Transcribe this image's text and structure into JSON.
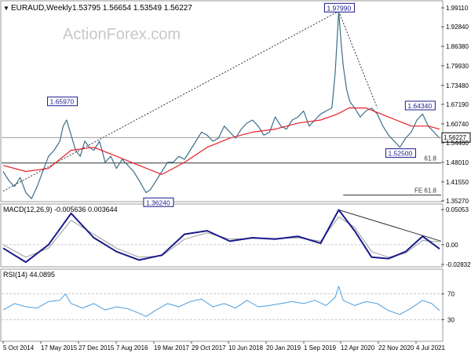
{
  "header": {
    "symbol_line": "EURAUD,Weekly",
    "ohlc_line": "1.53795 1.56654 1.53549 1.56227"
  },
  "watermark": "ActionForex.com",
  "colors": {
    "price": "#3a6f8a",
    "ma": "#e8202a",
    "macd": "#1a1a8c",
    "signal": "#9a9a9a",
    "rsi": "#4a9fe0",
    "label_border": "#1a1a8c",
    "fib": "#333333",
    "current_box": "#000000"
  },
  "chart_data": [
    {
      "type": "line",
      "name": "price",
      "x_tick_labels": [
        "5 Oct 2014",
        "17 May 2015",
        "27 Dec 2015",
        "7 Aug 2016",
        "19 Mar 2017",
        "29 Oct 2017",
        "10 Jun 2018",
        "20 Jan 2019",
        "1 Sep 2019",
        "12 Apr 2020",
        "22 Nov 2020",
        "4 Jul 2021"
      ],
      "y_tick_labels": [
        "1.99110",
        "1.92840",
        "1.86380",
        "1.79930",
        "1.73480",
        "1.67190",
        "1.60740",
        "1.54460",
        "1.48010",
        "1.41550",
        "1.35270"
      ],
      "ylim": [
        1.3527,
        1.9911
      ],
      "current_value": 1.56227,
      "current_label": "1.56227",
      "price_series": [
        [
          0,
          1.45
        ],
        [
          5,
          1.42
        ],
        [
          10,
          1.4
        ],
        [
          15,
          1.43
        ],
        [
          20,
          1.38
        ],
        [
          25,
          1.36
        ],
        [
          30,
          1.4
        ],
        [
          35,
          1.45
        ],
        [
          40,
          1.5
        ],
        [
          45,
          1.52
        ],
        [
          50,
          1.55
        ],
        [
          53,
          1.6
        ],
        [
          56,
          1.62
        ],
        [
          60,
          1.57
        ],
        [
          64,
          1.52
        ],
        [
          68,
          1.5
        ],
        [
          72,
          1.55
        ],
        [
          76,
          1.53
        ],
        [
          80,
          1.52
        ],
        [
          85,
          1.55
        ],
        [
          90,
          1.48
        ],
        [
          95,
          1.5
        ],
        [
          100,
          1.46
        ],
        [
          105,
          1.49
        ],
        [
          110,
          1.47
        ],
        [
          115,
          1.45
        ],
        [
          120,
          1.42
        ],
        [
          126,
          1.38
        ],
        [
          130,
          1.39
        ],
        [
          135,
          1.42
        ],
        [
          140,
          1.45
        ],
        [
          145,
          1.48
        ],
        [
          150,
          1.48
        ],
        [
          155,
          1.5
        ],
        [
          160,
          1.49
        ],
        [
          165,
          1.52
        ],
        [
          170,
          1.55
        ],
        [
          175,
          1.58
        ],
        [
          180,
          1.57
        ],
        [
          185,
          1.55
        ],
        [
          190,
          1.56
        ],
        [
          195,
          1.6
        ],
        [
          200,
          1.58
        ],
        [
          205,
          1.56
        ],
        [
          210,
          1.59
        ],
        [
          215,
          1.61
        ],
        [
          220,
          1.62
        ],
        [
          225,
          1.6
        ],
        [
          230,
          1.57
        ],
        [
          235,
          1.58
        ],
        [
          240,
          1.63
        ],
        [
          245,
          1.6
        ],
        [
          250,
          1.59
        ],
        [
          255,
          1.62
        ],
        [
          260,
          1.63
        ],
        [
          265,
          1.65
        ],
        [
          270,
          1.6
        ],
        [
          275,
          1.62
        ],
        [
          280,
          1.64
        ],
        [
          285,
          1.65
        ],
        [
          290,
          1.66
        ],
        [
          293,
          1.78
        ],
        [
          296,
          1.98
        ],
        [
          298,
          1.88
        ],
        [
          300,
          1.8
        ],
        [
          303,
          1.72
        ],
        [
          306,
          1.68
        ],
        [
          310,
          1.66
        ],
        [
          315,
          1.63
        ],
        [
          320,
          1.65
        ],
        [
          325,
          1.66
        ],
        [
          330,
          1.64
        ],
        [
          335,
          1.6
        ],
        [
          340,
          1.57
        ],
        [
          345,
          1.55
        ],
        [
          350,
          1.53
        ],
        [
          355,
          1.56
        ],
        [
          360,
          1.58
        ],
        [
          365,
          1.62
        ],
        [
          370,
          1.64
        ],
        [
          375,
          1.6
        ],
        [
          380,
          1.58
        ],
        [
          385,
          1.56
        ]
      ],
      "ma_series": [
        [
          0,
          1.47
        ],
        [
          20,
          1.45
        ],
        [
          40,
          1.46
        ],
        [
          60,
          1.52
        ],
        [
          80,
          1.53
        ],
        [
          100,
          1.5
        ],
        [
          120,
          1.47
        ],
        [
          140,
          1.44
        ],
        [
          160,
          1.48
        ],
        [
          180,
          1.53
        ],
        [
          200,
          1.56
        ],
        [
          220,
          1.58
        ],
        [
          240,
          1.59
        ],
        [
          260,
          1.61
        ],
        [
          280,
          1.62
        ],
        [
          295,
          1.64
        ],
        [
          305,
          1.66
        ],
        [
          320,
          1.66
        ],
        [
          340,
          1.63
        ],
        [
          360,
          1.6
        ],
        [
          375,
          1.6
        ],
        [
          385,
          1.59
        ]
      ],
      "annotations": [
        {
          "label": "1.97990",
          "value": 1.9799,
          "bar": 296
        },
        {
          "label": "1.65970",
          "value": 1.6597,
          "bar": 53
        },
        {
          "label": "1.64340",
          "value": 1.6434,
          "bar": 370
        },
        {
          "label": "1.52500",
          "value": 1.525,
          "bar": 350
        },
        {
          "label": "1.36240",
          "value": 1.3624,
          "bar": 126
        }
      ],
      "fib_levels": [
        {
          "label": "61.8",
          "value": 1.478
        },
        {
          "label": "FE 61.8",
          "value": 1.372
        }
      ]
    },
    {
      "type": "line",
      "name": "MACD",
      "title": "MACD(12,26,9) -0.005636 0.003644",
      "y_tick_labels": [
        "0.05053",
        "0.00",
        "-0.028323"
      ],
      "ylim": [
        -0.028323,
        0.05053
      ],
      "macd_series": [
        [
          0,
          -0.005
        ],
        [
          20,
          -0.025
        ],
        [
          40,
          0.0
        ],
        [
          60,
          0.045
        ],
        [
          80,
          0.01
        ],
        [
          100,
          -0.01
        ],
        [
          120,
          -0.022
        ],
        [
          140,
          -0.015
        ],
        [
          160,
          0.015
        ],
        [
          180,
          0.02
        ],
        [
          200,
          0.005
        ],
        [
          220,
          0.01
        ],
        [
          240,
          0.008
        ],
        [
          260,
          0.012
        ],
        [
          280,
          0.002
        ],
        [
          296,
          0.05
        ],
        [
          310,
          0.02
        ],
        [
          325,
          -0.018
        ],
        [
          340,
          -0.02
        ],
        [
          355,
          -0.01
        ],
        [
          370,
          0.012
        ],
        [
          385,
          -0.006
        ]
      ],
      "signal_series": [
        [
          0,
          0.0
        ],
        [
          20,
          -0.018
        ],
        [
          40,
          -0.005
        ],
        [
          60,
          0.035
        ],
        [
          80,
          0.015
        ],
        [
          100,
          -0.005
        ],
        [
          120,
          -0.018
        ],
        [
          140,
          -0.016
        ],
        [
          160,
          0.008
        ],
        [
          180,
          0.017
        ],
        [
          200,
          0.008
        ],
        [
          220,
          0.009
        ],
        [
          240,
          0.009
        ],
        [
          260,
          0.01
        ],
        [
          280,
          0.005
        ],
        [
          296,
          0.04
        ],
        [
          310,
          0.025
        ],
        [
          325,
          -0.01
        ],
        [
          340,
          -0.018
        ],
        [
          355,
          -0.012
        ],
        [
          370,
          0.006
        ],
        [
          385,
          0.004
        ]
      ]
    },
    {
      "type": "line",
      "name": "RSI",
      "title": "RSI(14) 44.0895",
      "y_tick_labels": [
        "70",
        "30"
      ],
      "ylim": [
        0,
        100
      ],
      "rsi_series": [
        [
          0,
          45
        ],
        [
          10,
          55
        ],
        [
          20,
          50
        ],
        [
          30,
          48
        ],
        [
          40,
          58
        ],
        [
          50,
          60
        ],
        [
          55,
          70
        ],
        [
          60,
          55
        ],
        [
          70,
          48
        ],
        [
          80,
          55
        ],
        [
          90,
          45
        ],
        [
          100,
          50
        ],
        [
          110,
          47
        ],
        [
          120,
          40
        ],
        [
          126,
          35
        ],
        [
          135,
          45
        ],
        [
          145,
          55
        ],
        [
          155,
          50
        ],
        [
          165,
          58
        ],
        [
          175,
          62
        ],
        [
          185,
          50
        ],
        [
          195,
          55
        ],
        [
          205,
          48
        ],
        [
          215,
          60
        ],
        [
          225,
          50
        ],
        [
          235,
          52
        ],
        [
          245,
          55
        ],
        [
          255,
          58
        ],
        [
          265,
          55
        ],
        [
          275,
          60
        ],
        [
          285,
          52
        ],
        [
          293,
          65
        ],
        [
          296,
          82
        ],
        [
          300,
          60
        ],
        [
          310,
          52
        ],
        [
          320,
          58
        ],
        [
          330,
          55
        ],
        [
          340,
          44
        ],
        [
          350,
          38
        ],
        [
          360,
          48
        ],
        [
          370,
          60
        ],
        [
          378,
          55
        ],
        [
          385,
          44
        ]
      ]
    }
  ]
}
